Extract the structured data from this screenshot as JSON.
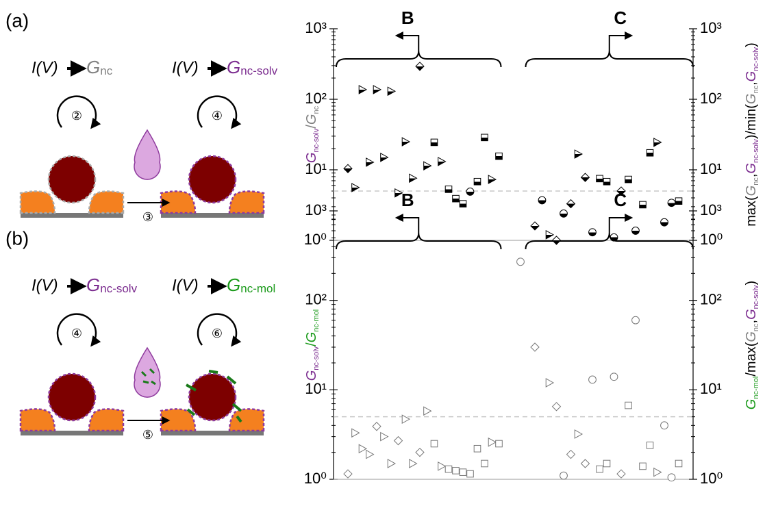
{
  "panels": [
    {
      "label": "(a)",
      "steps": [
        {
          "pre": "I(V)",
          "symbol": "G",
          "sub": "nc",
          "color": "#808080",
          "cycle": "②"
        },
        {
          "pre": "I(V)",
          "symbol": "G",
          "sub": "nc-solv",
          "color": "#7b2c8f",
          "cycle": "④"
        }
      ],
      "transfer": "③"
    },
    {
      "label": "(b)",
      "steps": [
        {
          "pre": "I(V)",
          "symbol": "G",
          "sub": "nc-solv",
          "color": "#7b2c8f",
          "cycle": "④"
        },
        {
          "pre": "I(V)",
          "symbol": "G",
          "sub": "nc-mol",
          "color": "#1a9a1a",
          "cycle": "⑥"
        }
      ],
      "transfer": "⑤"
    }
  ],
  "chart_data": [
    {
      "type": "scatter",
      "log_y": true,
      "marker_fill": "half",
      "xlim": [
        0,
        50
      ],
      "ylim": [
        1,
        1000
      ],
      "y2lim": [
        1,
        1000
      ],
      "yticks": [
        {
          "value": 1,
          "label": "10⁰"
        },
        {
          "value": 10,
          "label": "10¹"
        },
        {
          "value": 100,
          "label": "10²"
        },
        {
          "value": 1000,
          "label": "10³"
        }
      ],
      "y2ticks": [
        {
          "value": 1,
          "label": "10⁰"
        },
        {
          "value": 10,
          "label": "10¹"
        },
        {
          "value": 100,
          "label": "10²"
        },
        {
          "value": 1000,
          "label": "10³"
        }
      ],
      "threshold": 5,
      "groups": [
        {
          "label": "B",
          "direction": "left"
        },
        {
          "label": "C",
          "direction": "right"
        }
      ],
      "ylabel": [
        {
          "text": "G",
          "color": "#7b2c8f",
          "italic": true
        },
        {
          "text": "nc-solv",
          "color": "#7b2c8f",
          "sub": true
        },
        {
          "text": "/",
          "color": "#808080"
        },
        {
          "text": "G",
          "color": "#808080",
          "italic": true
        },
        {
          "text": "nc",
          "color": "#808080",
          "sub": true
        }
      ],
      "y2label": [
        {
          "text": "max(",
          "color": "#000000"
        },
        {
          "text": "G",
          "color": "#808080",
          "italic": true
        },
        {
          "text": "nc",
          "color": "#808080",
          "sub": true
        },
        {
          "text": ",",
          "color": "#000000"
        },
        {
          "text": "G",
          "color": "#7b2c8f",
          "italic": true
        },
        {
          "text": "nc-solv",
          "color": "#7b2c8f",
          "sub": true
        },
        {
          "text": ")/min(",
          "color": "#000000"
        },
        {
          "text": "G",
          "color": "#808080",
          "italic": true
        },
        {
          "text": "nc",
          "color": "#808080",
          "sub": true
        },
        {
          "text": ",",
          "color": "#000000"
        },
        {
          "text": "G",
          "color": "#7b2c8f",
          "italic": true
        },
        {
          "text": "nc-solv",
          "color": "#7b2c8f",
          "sub": true
        },
        {
          "text": ")",
          "color": "#000000"
        }
      ],
      "series": [
        {
          "marker": "diamond",
          "x": [
            2,
            12,
            28,
            31,
            33,
            35,
            40
          ],
          "values": [
            10.4,
            293,
            1.6,
            1.0,
            3.3,
            7.8,
            5.0
          ]
        },
        {
          "marker": "triangle",
          "x": [
            3,
            4,
            5,
            6,
            7,
            8,
            9,
            10,
            11,
            13,
            15,
            22,
            30,
            34,
            45
          ],
          "values": [
            5.6,
            137,
            12.8,
            137,
            15,
            130,
            4.7,
            25,
            7.6,
            11.4,
            13.1,
            7.3,
            1.2,
            16.7,
            24.5
          ]
        },
        {
          "marker": "square",
          "x": [
            14,
            16,
            17,
            18,
            20,
            21,
            23,
            37,
            38,
            41,
            43,
            44,
            48
          ],
          "values": [
            24.5,
            5.3,
            3.9,
            3.3,
            6.8,
            28.7,
            15.6,
            7.5,
            6.8,
            7.3,
            3.2,
            17.4,
            3.6
          ]
        },
        {
          "marker": "circle",
          "x": [
            19,
            29,
            32,
            36,
            39,
            42,
            46,
            47
          ],
          "values": [
            4.9,
            3.7,
            2.4,
            1.3,
            1.1,
            1.37,
            1.8,
            3.4
          ]
        }
      ]
    },
    {
      "type": "scatter",
      "log_y": true,
      "marker_fill": "open",
      "xlim": [
        0,
        50
      ],
      "ylim": [
        1,
        1000
      ],
      "y2lim": [
        1,
        1000
      ],
      "yticks": [
        {
          "value": 1,
          "label": "10⁰"
        },
        {
          "value": 10,
          "label": "10¹"
        },
        {
          "value": 100,
          "label": "10²"
        },
        {
          "value": 1000,
          "label": "10³"
        }
      ],
      "y2ticks": [
        {
          "value": 1,
          "label": "10⁰"
        },
        {
          "value": 10,
          "label": "10¹"
        },
        {
          "value": 100,
          "label": "10²"
        },
        {
          "value": 1000,
          "label": "10³"
        }
      ],
      "threshold": 5,
      "groups": [
        {
          "label": "B",
          "direction": "left"
        },
        {
          "label": "C",
          "direction": "right"
        }
      ],
      "ylabel": [
        {
          "text": "G",
          "color": "#7b2c8f",
          "italic": true
        },
        {
          "text": "nc-solv",
          "color": "#7b2c8f",
          "sub": true
        },
        {
          "text": "/",
          "color": "#1a9a1a"
        },
        {
          "text": "G",
          "color": "#1a9a1a",
          "italic": true
        },
        {
          "text": "nc-mol",
          "color": "#1a9a1a",
          "sub": true
        }
      ],
      "y2label": [
        {
          "text": "G",
          "color": "#1a9a1a",
          "italic": true
        },
        {
          "text": "nc-mol",
          "color": "#1a9a1a",
          "sub": true
        },
        {
          "text": "/max(",
          "color": "#000000"
        },
        {
          "text": "G",
          "color": "#808080",
          "italic": true
        },
        {
          "text": "nc",
          "color": "#808080",
          "sub": true
        },
        {
          "text": ",",
          "color": "#000000"
        },
        {
          "text": "G",
          "color": "#7b2c8f",
          "italic": true
        },
        {
          "text": "nc-solv",
          "color": "#7b2c8f",
          "sub": true
        },
        {
          "text": ")",
          "color": "#000000"
        }
      ],
      "series": [
        {
          "marker": "diamond",
          "x": [
            2,
            6,
            9,
            12,
            28,
            31,
            33,
            35,
            40
          ],
          "values": [
            1.15,
            3.9,
            2.7,
            2.0,
            30,
            6.5,
            1.9,
            1.5,
            1.15
          ]
        },
        {
          "marker": "triangle",
          "x": [
            3,
            4,
            5,
            7,
            8,
            10,
            11,
            13,
            15,
            22,
            30,
            34,
            45
          ],
          "values": [
            3.3,
            2.2,
            1.9,
            3.0,
            1.5,
            4.7,
            1.5,
            5.8,
            1.4,
            2.6,
            12,
            3.2,
            1.2
          ]
        },
        {
          "marker": "square",
          "x": [
            14,
            16,
            17,
            18,
            19,
            20,
            21,
            23,
            37,
            38,
            41,
            43,
            44,
            48
          ],
          "values": [
            2.5,
            1.3,
            1.25,
            1.2,
            1.15,
            2.2,
            1.5,
            2.5,
            1.3,
            1.5,
            6.7,
            1.4,
            2.4,
            1.5
          ]
        },
        {
          "marker": "circle",
          "x": [
            26,
            32,
            36,
            39,
            42,
            46,
            47
          ],
          "values": [
            270,
            1.1,
            13,
            14,
            60,
            4.0,
            1.05
          ]
        }
      ]
    }
  ]
}
